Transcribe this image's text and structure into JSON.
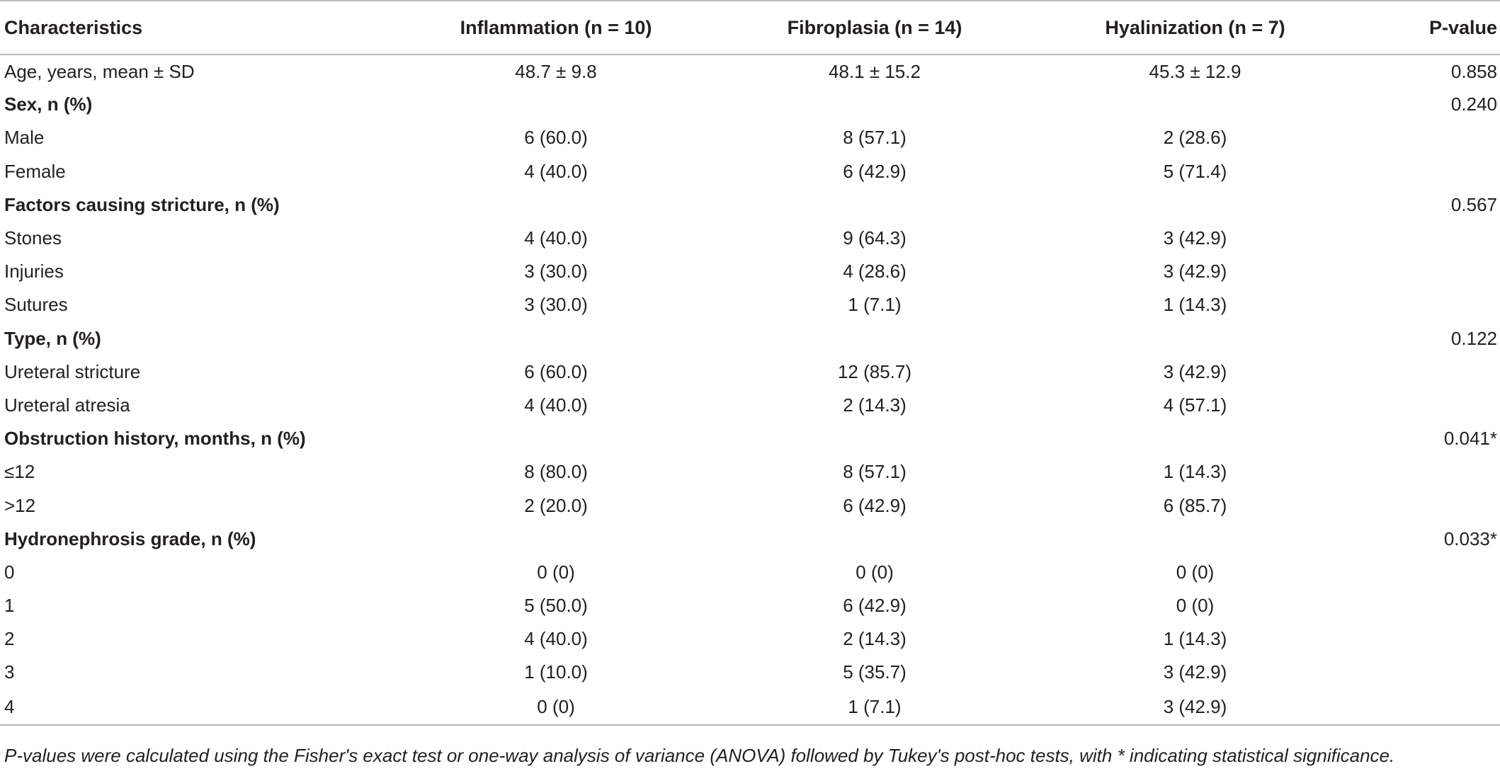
{
  "header": {
    "characteristics": "Characteristics",
    "inflammation": "Inflammation (n = 10)",
    "fibroplasia": "Fibroplasia (n = 14)",
    "hyalinization": "Hyalinization (n = 7)",
    "p_value": "P-value"
  },
  "rows": [
    {
      "label": "Age, years, mean ± SD",
      "inflammation": "48.7 ± 9.8",
      "fibroplasia": "48.1 ± 15.2",
      "hyalinization": "45.3 ± 12.9",
      "p": "0.858"
    },
    {
      "label": "Sex, n (%)",
      "inflammation": "",
      "fibroplasia": "",
      "hyalinization": "",
      "p": "0.240"
    },
    {
      "label": "Male",
      "inflammation": "6 (60.0)",
      "fibroplasia": "8 (57.1)",
      "hyalinization": "2 (28.6)",
      "p": ""
    },
    {
      "label": "Female",
      "inflammation": "4 (40.0)",
      "fibroplasia": "6 (42.9)",
      "hyalinization": "5 (71.4)",
      "p": ""
    },
    {
      "label": "Factors causing stricture, n (%)",
      "inflammation": "",
      "fibroplasia": "",
      "hyalinization": "",
      "p": "0.567"
    },
    {
      "label": "Stones",
      "inflammation": "4 (40.0)",
      "fibroplasia": "9 (64.3)",
      "hyalinization": "3 (42.9)",
      "p": ""
    },
    {
      "label": "Injuries",
      "inflammation": "3 (30.0)",
      "fibroplasia": "4 (28.6)",
      "hyalinization": "3 (42.9)",
      "p": ""
    },
    {
      "label": "Sutures",
      "inflammation": "3 (30.0)",
      "fibroplasia": "1 (7.1)",
      "hyalinization": "1 (14.3)",
      "p": ""
    },
    {
      "label": "Type, n (%)",
      "inflammation": "",
      "fibroplasia": "",
      "hyalinization": "",
      "p": "0.122"
    },
    {
      "label": "Ureteral stricture",
      "inflammation": "6 (60.0)",
      "fibroplasia": "12 (85.7)",
      "hyalinization": "3 (42.9)",
      "p": ""
    },
    {
      "label": "Ureteral atresia",
      "inflammation": "4 (40.0)",
      "fibroplasia": "2 (14.3)",
      "hyalinization": "4 (57.1)",
      "p": ""
    },
    {
      "label": "Obstruction history, months, n (%)",
      "inflammation": "",
      "fibroplasia": "",
      "hyalinization": "",
      "p": "0.041*"
    },
    {
      "label": "≤12",
      "inflammation": "8 (80.0)",
      "fibroplasia": "8 (57.1)",
      "hyalinization": "1 (14.3)",
      "p": ""
    },
    {
      "label": ">12",
      "inflammation": "2 (20.0)",
      "fibroplasia": "6 (42.9)",
      "hyalinization": "6 (85.7)",
      "p": ""
    },
    {
      "label": "Hydronephrosis grade, n (%)",
      "inflammation": "",
      "fibroplasia": "",
      "hyalinization": "",
      "p": "0.033*"
    },
    {
      "label": "0",
      "inflammation": "0 (0)",
      "fibroplasia": "0 (0)",
      "hyalinization": "0 (0)",
      "p": ""
    },
    {
      "label": "1",
      "inflammation": "5 (50.0)",
      "fibroplasia": "6 (42.9)",
      "hyalinization": "0 (0)",
      "p": ""
    },
    {
      "label": "2",
      "inflammation": "4 (40.0)",
      "fibroplasia": "2 (14.3)",
      "hyalinization": "1 (14.3)",
      "p": ""
    },
    {
      "label": "3",
      "inflammation": "1 (10.0)",
      "fibroplasia": "5 (35.7)",
      "hyalinization": "3 (42.9)",
      "p": ""
    },
    {
      "label": "4",
      "inflammation": "0 (0)",
      "fibroplasia": "1 (7.1)",
      "hyalinization": "3 (42.9)",
      "p": ""
    }
  ],
  "footnote": "P-values were calculated using the Fisher's exact test or one-way analysis of variance (ANOVA) followed by Tukey's post-hoc tests, with * indicating statistical significance."
}
